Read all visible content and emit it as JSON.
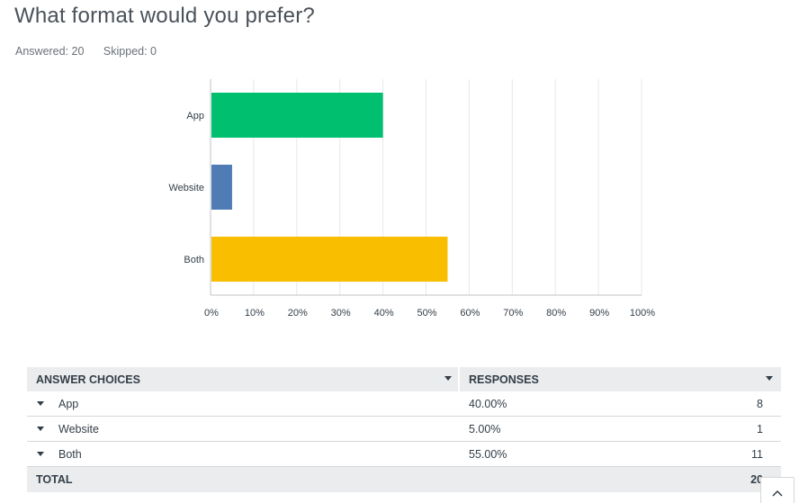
{
  "question": {
    "title": "What format would you prefer?",
    "answered": "Answered: 20",
    "skipped": "Skipped: 0"
  },
  "chart_data": {
    "type": "bar",
    "orientation": "horizontal",
    "categories": [
      "App",
      "Website",
      "Both"
    ],
    "values": [
      40,
      5,
      55
    ],
    "colors": [
      "#00bf6f",
      "#507cb6",
      "#f9be00"
    ],
    "xlim": [
      0,
      100
    ],
    "x_ticks": [
      "0%",
      "10%",
      "20%",
      "30%",
      "40%",
      "50%",
      "60%",
      "70%",
      "80%",
      "90%",
      "100%"
    ],
    "grid": "vertical"
  },
  "table": {
    "headers": {
      "choices": "ANSWER CHOICES",
      "responses": "RESPONSES"
    },
    "rows": [
      {
        "choice": "App",
        "percent": "40.00%",
        "count": "8"
      },
      {
        "choice": "Website",
        "percent": "5.00%",
        "count": "1"
      },
      {
        "choice": "Both",
        "percent": "55.00%",
        "count": "11"
      }
    ],
    "total_label": "TOTAL",
    "total_value": "20"
  },
  "icons": {
    "sort": "sort-arrow-icon",
    "expand": "caret-down-icon",
    "back_to_top": "chevron-up-icon"
  }
}
